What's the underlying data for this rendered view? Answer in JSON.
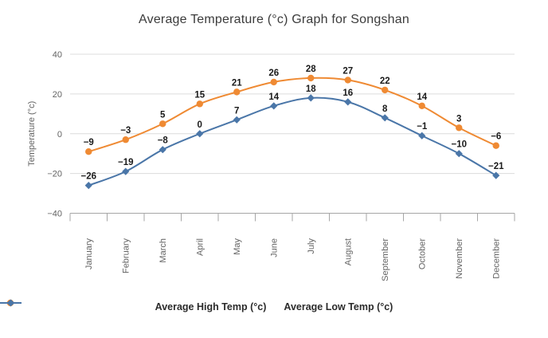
{
  "chart_data": {
    "type": "line",
    "title": "Average Temperature (°c) Graph for Songshan",
    "categories": [
      "January",
      "February",
      "March",
      "April",
      "May",
      "June",
      "July",
      "August",
      "September",
      "October",
      "November",
      "December"
    ],
    "series": [
      {
        "name": "Average High Temp (°c)",
        "color": "#EF8A33",
        "marker": "circle",
        "values": [
          -9,
          -3,
          5,
          15,
          21,
          26,
          28,
          27,
          22,
          14,
          3,
          -6
        ]
      },
      {
        "name": "Average Low Temp (°c)",
        "color": "#4A76A8",
        "marker": "diamond",
        "values": [
          -26,
          -19,
          -8,
          0,
          7,
          14,
          18,
          16,
          8,
          -1,
          -10,
          -21
        ]
      }
    ],
    "xlabel": "",
    "ylabel": "Temperature (°c)",
    "ylim": [
      -40,
      40
    ],
    "y_ticks": [
      40,
      20,
      0,
      -20,
      -40
    ],
    "grid": true,
    "data_labels": true,
    "legend_position": "bottom"
  },
  "colors": {
    "high_series": "#EF8A33",
    "low_series": "#4A76A8",
    "gridline": "#DCDCDC",
    "axis_line": "#A6A6A6",
    "tick_label": "#636363",
    "data_label": "#1A1A1A",
    "title_text": "#3B3B3B",
    "legend_text": "#2B2B2B"
  }
}
